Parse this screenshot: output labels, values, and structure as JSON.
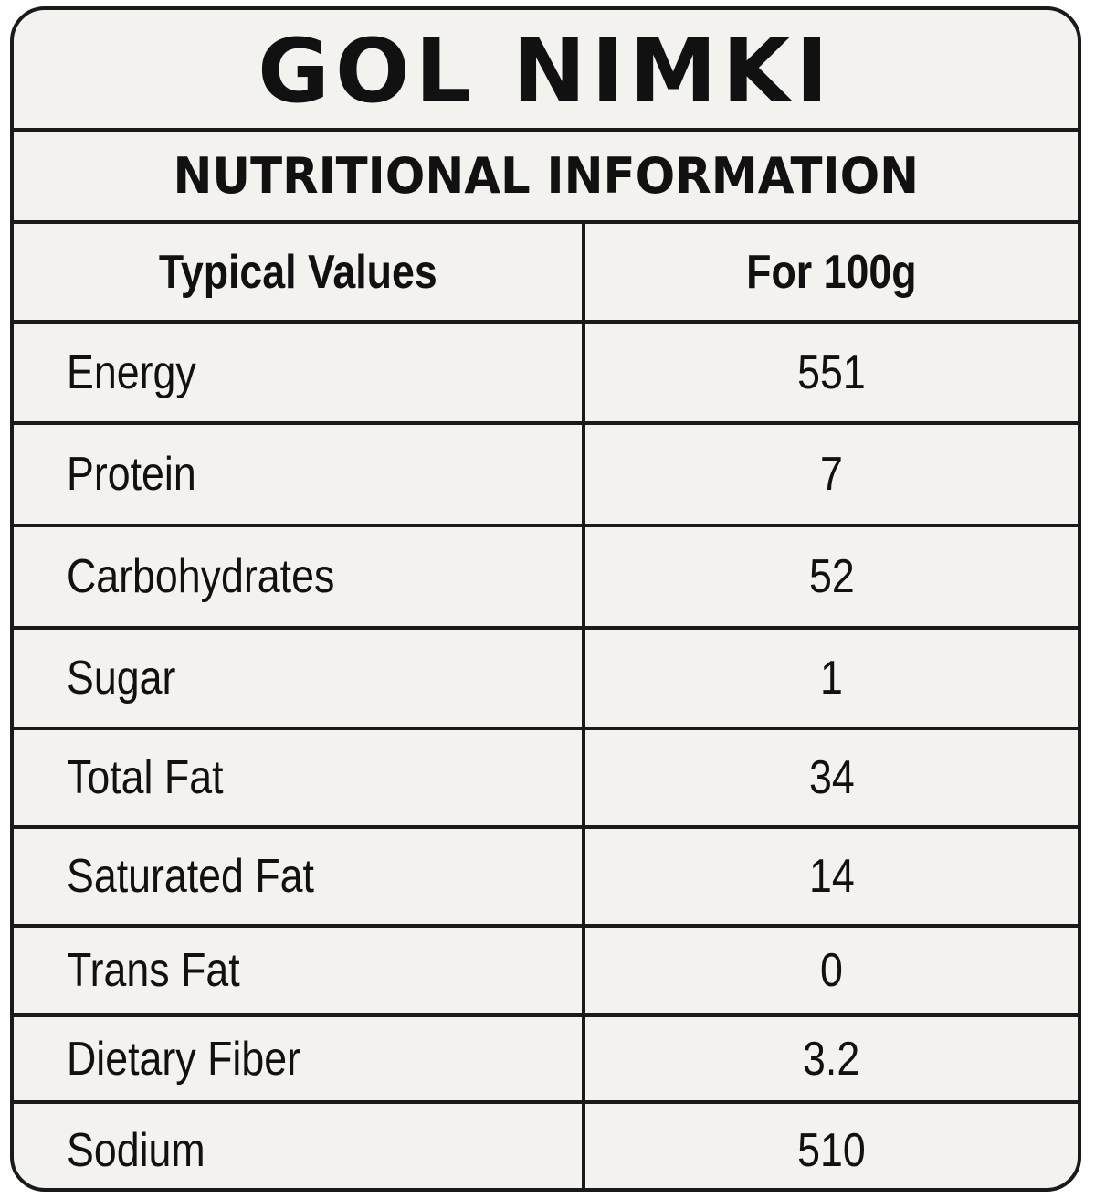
{
  "title": "GOL NIMKI",
  "subtitle": "NUTRITIONAL INFORMATION",
  "table": {
    "header": {
      "label": "Typical Values",
      "value": "For 100g"
    },
    "rows": [
      {
        "label": "Energy",
        "value": "551"
      },
      {
        "label": "Protein",
        "value": "7"
      },
      {
        "label": "Carbohydrates",
        "value": "52"
      },
      {
        "label": "Sugar",
        "value": "1"
      },
      {
        "label": "Total Fat",
        "value": "34"
      },
      {
        "label": "Saturated Fat",
        "value": "14"
      },
      {
        "label": "Trans Fat",
        "value": "0"
      },
      {
        "label": "Dietary Fiber",
        "value": "3.2"
      },
      {
        "label": "Sodium",
        "value": "510"
      }
    ]
  }
}
